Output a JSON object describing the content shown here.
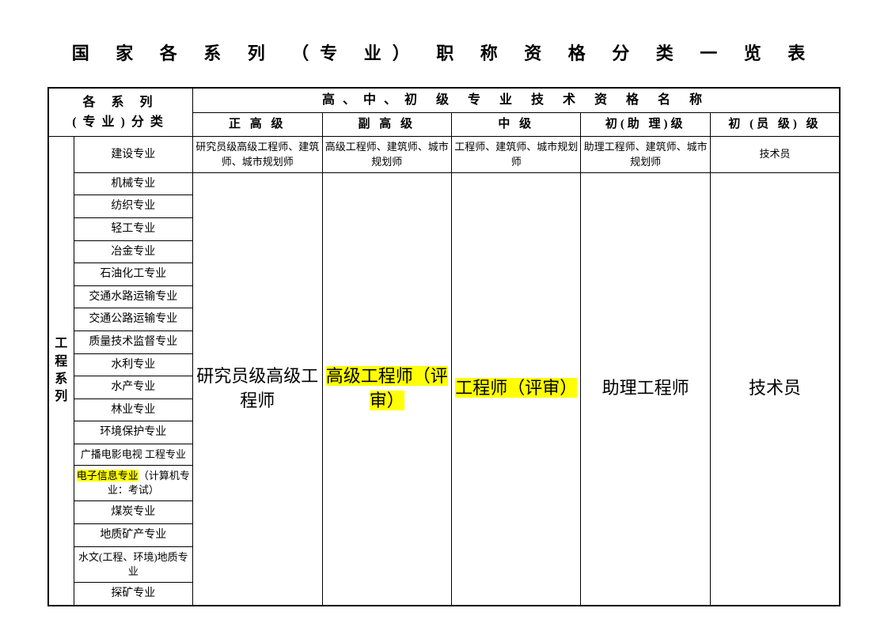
{
  "title": "国 家 各 系 列 （专 业） 职 称 资 格 分 类 一 览 表",
  "header": {
    "series_category": "各 系 列\n(专业)分类",
    "quals_header": "高、中、初 级 专 业 技 术 资 格 名 称",
    "levels": [
      "正 高 级",
      "副 高 级",
      "中  级",
      "初(助 理)级",
      "初 (员 级) 级"
    ]
  },
  "vertical_group": [
    "工",
    "程",
    "系",
    "列"
  ],
  "row1": {
    "spec": "建设专业",
    "cells": [
      "研究员级高级工程师、建筑师、城市规划师",
      "高级工程师、建筑师、城市规划师",
      "工程师、建筑师、城市规划师",
      "助理工程师、建筑师、城市规划师",
      "技术员"
    ]
  },
  "specialties": [
    "机械专业",
    "纺织专业",
    "轻工专业",
    "冶金专业",
    "石油化工专业",
    "交通水路运输专业",
    "交通公路运输专业",
    "质量技术监督专业",
    "水利专业",
    "水产专业",
    "林业专业",
    "环境保护专业",
    "广播电影电视\n工程专业",
    "电子信息专业（计算机专业：考试）",
    "煤炭专业",
    "地质矿产专业",
    "水文(工程、环境)地质专业",
    "探矿专业"
  ],
  "merged_cells": {
    "c1": "研究员级高级工程师",
    "c2": "高级工程师（评审）",
    "c3": "工程师（评审）",
    "c4": "助理工程师",
    "c5": "技术员"
  },
  "highlight_row_index": 13,
  "highlight_prefix": "电子信息专业",
  "highlight_suffix": "（计算机专业：考试）",
  "colors": {
    "highlight": "#ffff00",
    "text": "#000000",
    "background": "#ffffff"
  },
  "fonts": {
    "title_size": 22,
    "body_size": 14,
    "big_cell_size": 22
  }
}
